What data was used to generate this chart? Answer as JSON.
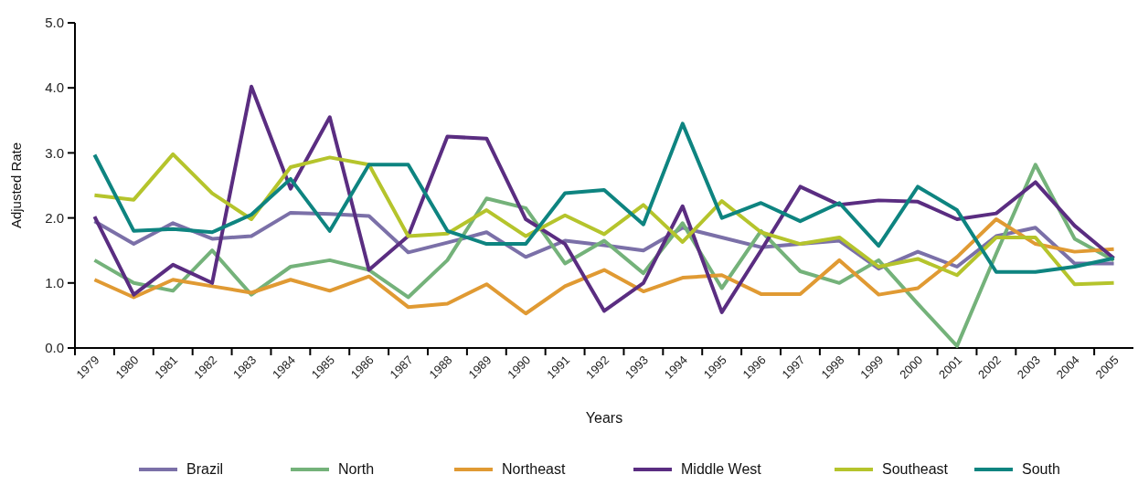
{
  "chart_data": {
    "type": "line",
    "xlabel": "Years",
    "ylabel": "Adjusted Rate",
    "categories": [
      "1979",
      "1980",
      "1981",
      "1982",
      "1983",
      "1984",
      "1985",
      "1986",
      "1987",
      "1988",
      "1989",
      "1990",
      "1991",
      "1992",
      "1993",
      "1994",
      "1995",
      "1996",
      "1997",
      "1998",
      "1999",
      "2000",
      "2001",
      "2002",
      "2003",
      "2004",
      "2005"
    ],
    "series": [
      {
        "name": "Brazil",
        "color": "#7b70a8",
        "values": [
          1.95,
          1.6,
          1.92,
          1.68,
          1.72,
          2.08,
          2.06,
          2.03,
          1.47,
          1.62,
          1.78,
          1.4,
          1.65,
          1.58,
          1.5,
          1.85,
          1.7,
          1.55,
          1.6,
          1.65,
          1.22,
          1.48,
          1.25,
          1.72,
          1.85,
          1.3,
          1.3
        ]
      },
      {
        "name": "North",
        "color": "#74b27a",
        "values": [
          1.35,
          1.0,
          0.88,
          1.5,
          0.82,
          1.25,
          1.35,
          1.2,
          0.78,
          1.35,
          2.3,
          2.15,
          1.3,
          1.65,
          1.15,
          1.92,
          0.92,
          1.8,
          1.18,
          1.0,
          1.35,
          0.68,
          0.03,
          1.45,
          2.82,
          1.68,
          1.35
        ]
      },
      {
        "name": "Northeast",
        "color": "#e09a33",
        "values": [
          1.05,
          0.78,
          1.05,
          0.95,
          0.85,
          1.05,
          0.88,
          1.1,
          0.63,
          0.68,
          0.98,
          0.53,
          0.95,
          1.2,
          0.87,
          1.08,
          1.12,
          0.83,
          0.83,
          1.35,
          0.82,
          0.92,
          1.4,
          1.98,
          1.6,
          1.48,
          1.52
        ]
      },
      {
        "name": "Middle West",
        "color": "#5a2d81",
        "values": [
          2.02,
          0.82,
          1.28,
          1.0,
          4.02,
          2.45,
          3.55,
          1.2,
          1.72,
          3.25,
          3.22,
          1.98,
          1.6,
          0.57,
          1.0,
          2.18,
          0.55,
          1.5,
          2.48,
          2.2,
          2.27,
          2.25,
          1.98,
          2.07,
          2.55,
          1.88,
          1.38
        ]
      },
      {
        "name": "Southeast",
        "color": "#b5c42c",
        "values": [
          2.35,
          2.28,
          2.98,
          2.38,
          1.98,
          2.78,
          2.93,
          2.82,
          1.72,
          1.76,
          2.12,
          1.72,
          2.04,
          1.75,
          2.2,
          1.63,
          2.26,
          1.78,
          1.6,
          1.7,
          1.25,
          1.37,
          1.12,
          1.7,
          1.7,
          0.98,
          1.0
        ]
      },
      {
        "name": "South",
        "color": "#0e8480",
        "values": [
          2.97,
          1.8,
          1.83,
          1.78,
          2.05,
          2.6,
          1.8,
          2.82,
          2.82,
          1.8,
          1.6,
          1.6,
          2.38,
          2.43,
          1.9,
          3.45,
          2.0,
          2.23,
          1.95,
          2.23,
          1.57,
          2.48,
          2.12,
          1.17,
          1.17,
          1.25,
          1.38
        ]
      }
    ],
    "ylim": [
      0,
      5
    ],
    "yticks": [
      {
        "value": 0,
        "label": "0.0"
      },
      {
        "value": 1,
        "label": "1.0"
      },
      {
        "value": 2,
        "label": "2.0"
      },
      {
        "value": 3,
        "label": "3.0"
      },
      {
        "value": 4,
        "label": "4.0"
      },
      {
        "value": 5,
        "label": "5.0"
      }
    ],
    "grid": false,
    "legend": "bottom",
    "marker": "none",
    "line_style": "solid"
  }
}
